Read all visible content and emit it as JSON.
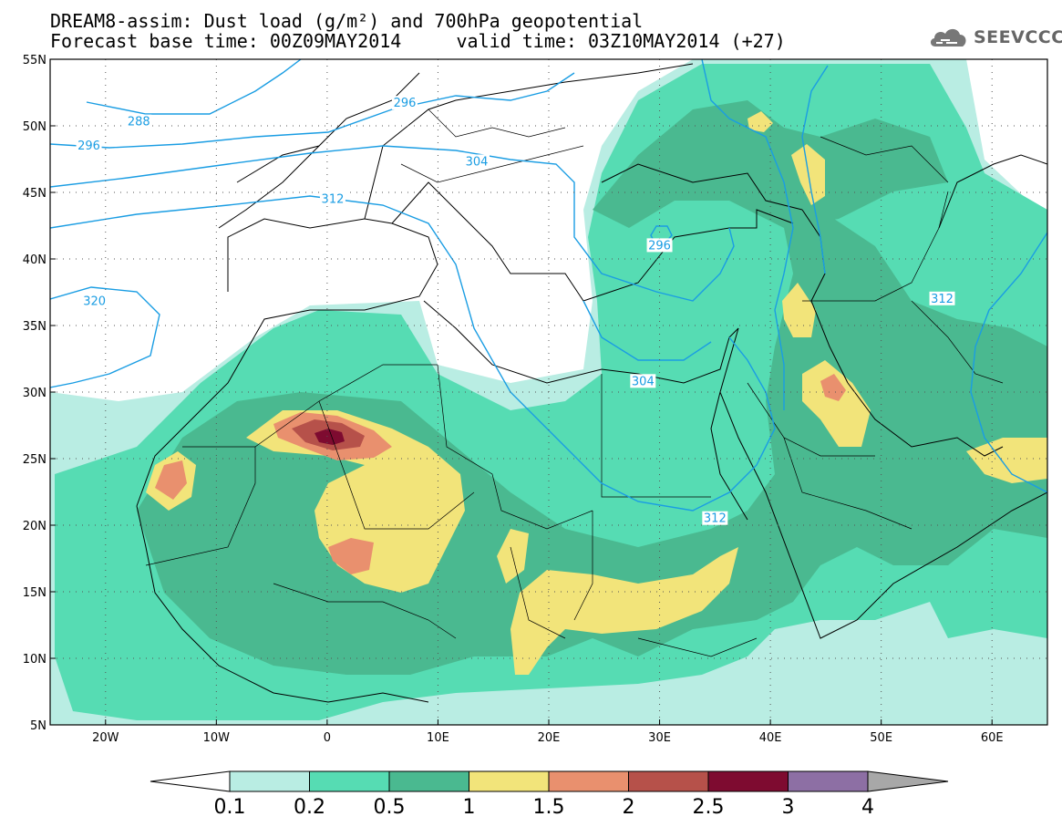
{
  "title": {
    "line1": "DREAM8-assim: Dust load (g/m²) and 700hPa geopotential",
    "line2": "Forecast base time: 00Z09MAY2014     valid time: 03Z10MAY2014 (+27)"
  },
  "logo": {
    "text": "SEEVCCC",
    "icon": "cloud-icon"
  },
  "map": {
    "variable": "Dust load (g/m²)",
    "lon_range": [
      -25,
      65
    ],
    "lat_range": [
      5,
      55
    ],
    "lon_ticks": [
      {
        "value": -20,
        "label": "20W"
      },
      {
        "value": -10,
        "label": "10W"
      },
      {
        "value": 0,
        "label": "0"
      },
      {
        "value": 10,
        "label": "10E"
      },
      {
        "value": 20,
        "label": "20E"
      },
      {
        "value": 30,
        "label": "30E"
      },
      {
        "value": 40,
        "label": "40E"
      },
      {
        "value": 50,
        "label": "50E"
      },
      {
        "value": 60,
        "label": "60E"
      }
    ],
    "lat_ticks": [
      {
        "value": 55,
        "label": "55N"
      },
      {
        "value": 50,
        "label": "50N"
      },
      {
        "value": 45,
        "label": "45N"
      },
      {
        "value": 40,
        "label": "40N"
      },
      {
        "value": 35,
        "label": "35N"
      },
      {
        "value": 30,
        "label": "30N"
      },
      {
        "value": 25,
        "label": "25N"
      },
      {
        "value": 20,
        "label": "20N"
      },
      {
        "value": 15,
        "label": "15N"
      },
      {
        "value": 10,
        "label": "10N"
      },
      {
        "value": 5,
        "label": "5N"
      }
    ],
    "geopotential_contour_labels": [
      {
        "text": "288",
        "lon": -17,
        "lat": 50.3
      },
      {
        "text": "296",
        "lon": -21.5,
        "lat": 48.5
      },
      {
        "text": "296",
        "lon": 7,
        "lat": 51.7
      },
      {
        "text": "304",
        "lon": 13.5,
        "lat": 47.3
      },
      {
        "text": "312",
        "lon": 0.5,
        "lat": 44.5
      },
      {
        "text": "296",
        "lon": 30,
        "lat": 41.0
      },
      {
        "text": "320",
        "lon": -21,
        "lat": 36.8
      },
      {
        "text": "304",
        "lon": 28.5,
        "lat": 30.8
      },
      {
        "text": "312",
        "lon": 35,
        "lat": 20.5
      },
      {
        "text": "312",
        "lon": 55.5,
        "lat": 37
      }
    ]
  },
  "colorbar": {
    "levels": [
      "0.1",
      "0.2",
      "0.5",
      "1",
      "1.5",
      "2",
      "2.5",
      "3",
      "4"
    ],
    "colors": [
      "#b9ede3",
      "#56dcb3",
      "#4ab990",
      "#f2e47a",
      "#e9906e",
      "#b6514a",
      "#7e0b30",
      "#8d6fa4"
    ],
    "over_color": "#a8a8a8",
    "under_color": "#ffffff"
  }
}
